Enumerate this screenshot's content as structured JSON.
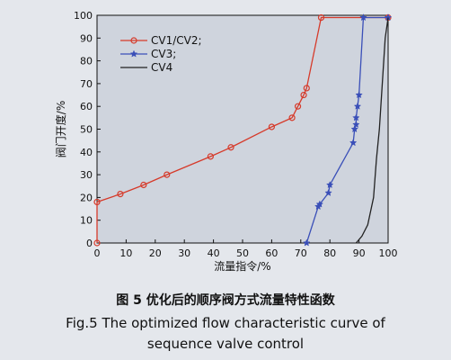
{
  "chart_data": {
    "type": "line",
    "xlabel": "流量指令/%",
    "ylabel": "阀门开度/%",
    "xlim": [
      0,
      100
    ],
    "ylim": [
      0,
      100
    ],
    "xticks": [
      "0",
      "10",
      "20",
      "30",
      "40",
      "50",
      "60",
      "70",
      "80",
      "90",
      "100"
    ],
    "yticks": [
      "0",
      "10",
      "20",
      "30",
      "40",
      "50",
      "60",
      "70",
      "80",
      "90",
      "100"
    ],
    "legend_position": "top-left",
    "series": [
      {
        "name": "CV1/CV2;",
        "color": "#d63a2a",
        "marker": "circle",
        "x": [
          0,
          0,
          8,
          16,
          24,
          39,
          46,
          60,
          67,
          69,
          71,
          72,
          77,
          100
        ],
        "y": [
          0,
          18,
          21.5,
          25.5,
          30,
          38,
          42,
          51,
          55,
          60,
          65,
          68,
          99,
          99
        ]
      },
      {
        "name": "CV3;",
        "color": "#3a4fb8",
        "marker": "star",
        "x": [
          72,
          76,
          76.5,
          79.5,
          80,
          88,
          88.5,
          89,
          89,
          89.5,
          90,
          91.5,
          100
        ],
        "y": [
          0,
          16,
          17,
          22,
          25.5,
          44,
          50,
          52,
          55,
          60,
          65,
          99,
          99
        ]
      },
      {
        "name": "CV4",
        "color": "#222222",
        "marker": "none",
        "x": [
          89,
          91,
          93,
          95,
          96,
          97,
          98,
          99,
          100
        ],
        "y": [
          0,
          3,
          8,
          20,
          37,
          50,
          70,
          90,
          99
        ]
      }
    ]
  },
  "caption": {
    "cn": "图 5   优化后的顺序阀方式流量特性函数",
    "en_line1": "Fig.5   The optimized flow characteristic curve of",
    "en_line2": "sequence valve control"
  }
}
